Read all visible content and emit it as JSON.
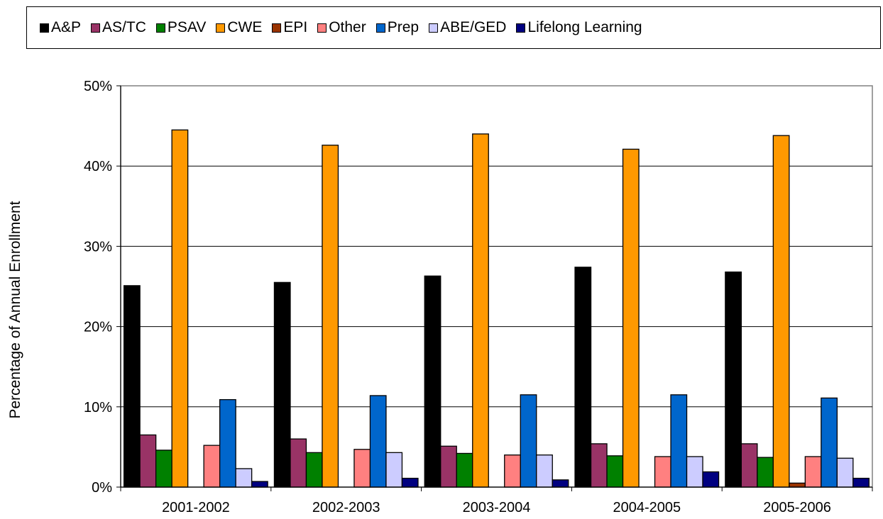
{
  "chart_data": {
    "type": "bar",
    "title": "",
    "xlabel": "",
    "ylabel": "Percentage of Annual Enrollment",
    "ylim": [
      0,
      50
    ],
    "yticks": [
      "0%",
      "10%",
      "20%",
      "30%",
      "40%",
      "50%"
    ],
    "grid": true,
    "legend_position": "top",
    "categories": [
      "2001-2002",
      "2002-2003",
      "2003-2004",
      "2004-2005",
      "2005-2006"
    ],
    "series": [
      {
        "name": "A&P",
        "color": "#000000",
        "values": [
          25.1,
          25.5,
          26.3,
          27.4,
          26.8
        ]
      },
      {
        "name": "AS/TC",
        "color": "#993366",
        "values": [
          6.5,
          6.0,
          5.1,
          5.4,
          5.4
        ]
      },
      {
        "name": "PSAV",
        "color": "#008000",
        "values": [
          4.6,
          4.3,
          4.2,
          3.9,
          3.7
        ]
      },
      {
        "name": "CWE",
        "color": "#FF9900",
        "values": [
          44.5,
          42.6,
          44.0,
          42.1,
          43.8
        ]
      },
      {
        "name": "EPI",
        "color": "#993300",
        "values": [
          0,
          0,
          0,
          0,
          0.5
        ]
      },
      {
        "name": "Other",
        "color": "#FF8080",
        "values": [
          5.2,
          4.7,
          4.0,
          3.8,
          3.8
        ]
      },
      {
        "name": "Prep",
        "color": "#0066CC",
        "values": [
          10.9,
          11.4,
          11.5,
          11.5,
          11.1
        ]
      },
      {
        "name": "ABE/GED",
        "color": "#CCCCFF",
        "values": [
          2.3,
          4.3,
          4.0,
          3.8,
          3.6
        ]
      },
      {
        "name": "Lifelong Learning",
        "color": "#000080",
        "values": [
          0.7,
          1.1,
          0.9,
          1.9,
          1.1
        ]
      }
    ]
  }
}
